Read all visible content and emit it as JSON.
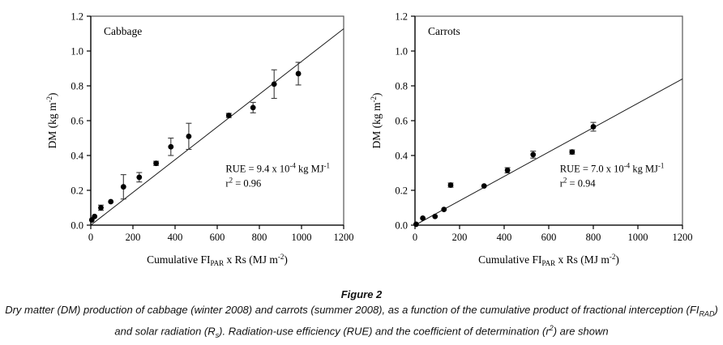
{
  "figure": {
    "caption_title": "Figure 2",
    "caption_body": "Dry matter (DM) production of cabbage (winter 2008) and carrots (summer 2008), as a function of the cumulative product of fractional interception (FI_{RAD}) and solar radiation (R_{s}). Radiation-use efficiency (RUE) and the coefficient of determination (r^{2}) are shown"
  },
  "colors": {
    "marker": "#000000",
    "error_bar": "#3a3a3a",
    "fit_line": "#1a1a1a",
    "axis": "#000000",
    "box": "#555555",
    "text": "#000000",
    "background": "#ffffff"
  },
  "chart_data": [
    {
      "type": "scatter",
      "title": "Cabbage",
      "xlabel": "Cumulative FI_{PAR} x Rs (MJ m^{-2})",
      "ylabel": "DM (kg m^{-2})",
      "xlim": [
        0,
        1200
      ],
      "ylim": [
        0,
        1.2
      ],
      "xticks": [
        0,
        200,
        400,
        600,
        800,
        1000,
        1200
      ],
      "yticks": [
        0.0,
        0.2,
        0.4,
        0.6,
        0.8,
        1.0,
        1.2
      ],
      "grid": false,
      "legend": "none",
      "points": [
        [
          5,
          0.03,
          0
        ],
        [
          18,
          0.05,
          0
        ],
        [
          48,
          0.1,
          0.015
        ],
        [
          95,
          0.135,
          0
        ],
        [
          155,
          0.22,
          0.07
        ],
        [
          230,
          0.275,
          0.027
        ],
        [
          310,
          0.355,
          0.012
        ],
        [
          380,
          0.45,
          0.05
        ],
        [
          465,
          0.51,
          0.075
        ],
        [
          655,
          0.63,
          0.012
        ],
        [
          770,
          0.675,
          0.03
        ],
        [
          870,
          0.81,
          0.082
        ],
        [
          985,
          0.87,
          0.065
        ]
      ],
      "fit_line": {
        "slope": 0.00094,
        "intercept": 0,
        "x_range": [
          0,
          1200
        ]
      },
      "rue_value": "9.4 x 10-4 kg MJ-1",
      "r2_value": "0.96",
      "annotation_line1": "RUE = 9.4 x 10^{-4} kg MJ^{-1}",
      "annotation_line2": "r^{2} = 0.96",
      "annotation_pos": {
        "x": 640,
        "y": 0.305
      }
    },
    {
      "type": "scatter",
      "title": "Carrots",
      "xlabel": "Cumulative FI_{PAR} x Rs (MJ m^{-2})",
      "ylabel": "DM (kg m^{-2})",
      "xlim": [
        0,
        1200
      ],
      "ylim": [
        0,
        1.2
      ],
      "xticks": [
        0,
        200,
        400,
        600,
        800,
        1000,
        1200
      ],
      "yticks": [
        0.0,
        0.2,
        0.4,
        0.6,
        0.8,
        1.0,
        1.2
      ],
      "grid": false,
      "legend": "none",
      "points": [
        [
          5,
          0.005,
          0
        ],
        [
          35,
          0.04,
          0
        ],
        [
          90,
          0.05,
          0
        ],
        [
          130,
          0.09,
          0
        ],
        [
          160,
          0.23,
          0.012
        ],
        [
          310,
          0.225,
          0
        ],
        [
          415,
          0.315,
          0.015
        ],
        [
          530,
          0.405,
          0.02
        ],
        [
          705,
          0.42,
          0.012
        ],
        [
          800,
          0.565,
          0.025
        ]
      ],
      "fit_line": {
        "slope": 0.0007,
        "intercept": 0,
        "x_range": [
          0,
          1200
        ]
      },
      "rue_value": "7.0 x 10-4 kg MJ-1",
      "r2_value": "0.94",
      "annotation_line1": "RUE = 7.0 x 10^{-4} kg MJ^{-1}",
      "annotation_line2": "r^{2} = 0.94",
      "annotation_pos": {
        "x": 650,
        "y": 0.305
      }
    }
  ]
}
